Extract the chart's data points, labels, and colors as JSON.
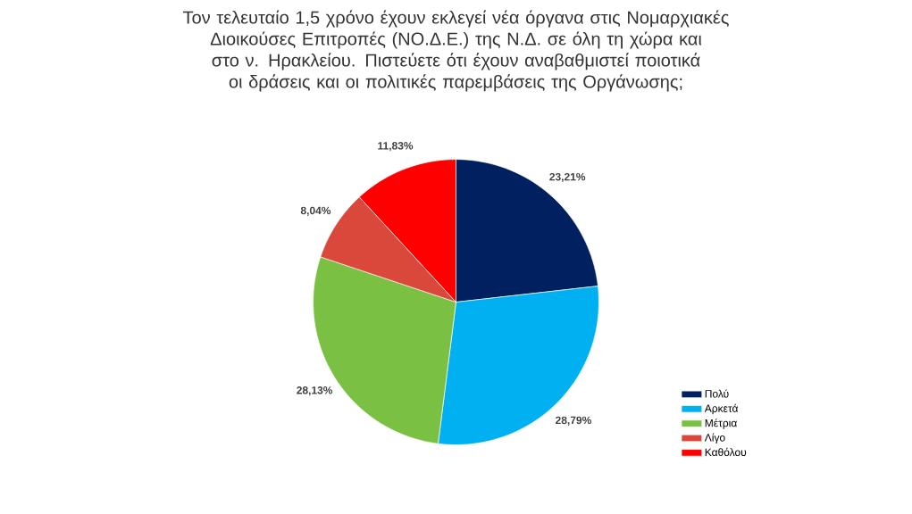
{
  "chart_data": {
    "type": "pie",
    "title": "Τον τελευταίο 1,5 χρόνο έχουν εκλεγεί νέα όργανα στις Νομαρχιακές Διοικούσες Επιτροπές (ΝΟ.Δ.Ε.) της Ν.Δ. σε όλη τη χώρα και στο ν. Ηρακλείου. Πιστεύετε ότι έχουν αναβαθμιστεί ποιοτικά οι δράσεις και οι πολιτικές παρεμβάσεις της Οργάνωσης;",
    "categories": [
      "Πολύ",
      "Αρκετά",
      "Μέτρια",
      "Λίγο",
      "Καθόλου"
    ],
    "values": [
      23.21,
      28.79,
      28.13,
      8.04,
      11.83
    ],
    "colors": [
      "#002060",
      "#00b0f0",
      "#7ac143",
      "#d9483b",
      "#ff0000"
    ],
    "value_labels": [
      "23,21%",
      "28,79%",
      "28,13%",
      "8,04%",
      "11,83%"
    ],
    "legend": "right"
  }
}
